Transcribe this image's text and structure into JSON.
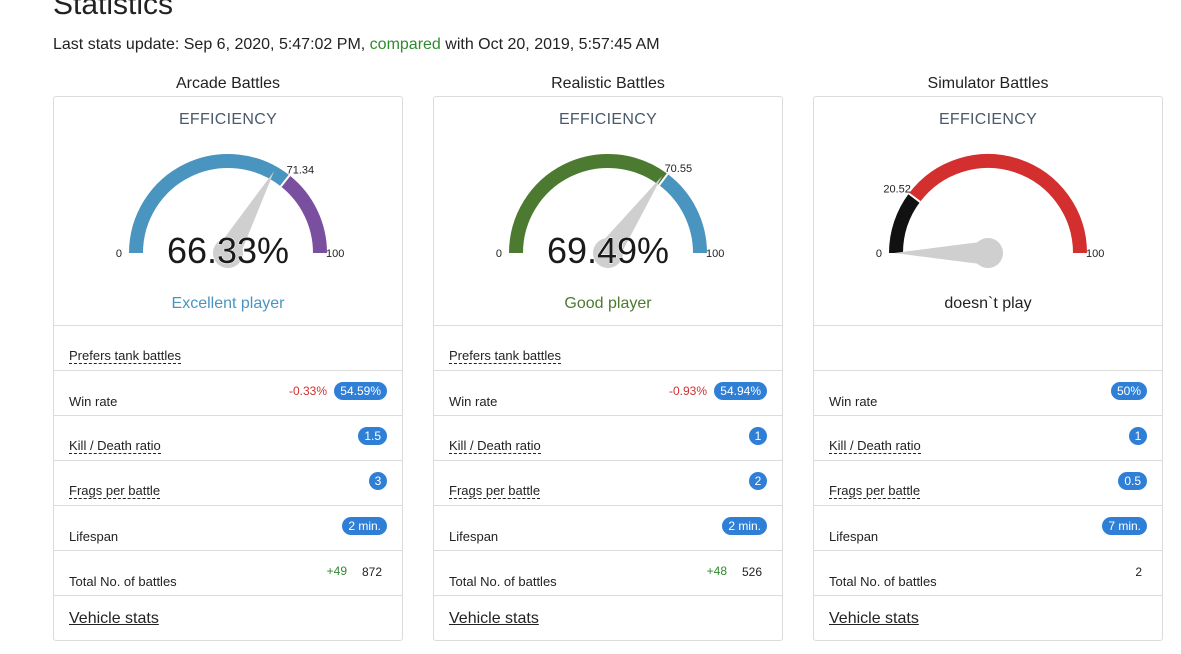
{
  "page": {
    "title": "Statistics",
    "update_prefix": "Last stats update: ",
    "update_date": "Sep 6, 2020, 5:47:02 PM",
    "comma": ",",
    "compared_link": "compared",
    "with_text": " with ",
    "compare_date": "Oct 20, 2019, 5:57:45 AM"
  },
  "columns": [
    {
      "title": "Arcade Battles",
      "efficiency_label": "EFFICIENCY",
      "gauge": {
        "percent_text": "66.33%",
        "value": 66.33,
        "marker_value": 71.34,
        "marker_label": "71.34",
        "min_label": "0",
        "max_label": "100",
        "primary_color": "#4a94c0",
        "secondary_color": "#7b4fa0"
      },
      "status": "Excellent player",
      "status_color": "#4a94c0",
      "prefers": "Prefers tank battles",
      "win_rate": {
        "label": "Win rate",
        "delta": "-0.33%",
        "value": "54.59%"
      },
      "kd": {
        "label": "Kill / Death ratio",
        "value": "1.5"
      },
      "frags": {
        "label": "Frags per battle",
        "value": "3"
      },
      "lifespan": {
        "label": "Lifespan",
        "value": "2 min."
      },
      "total": {
        "label": "Total No. of battles",
        "delta": "+49",
        "value": "872"
      },
      "vehicle_link": "Vehicle stats"
    },
    {
      "title": "Realistic Battles",
      "efficiency_label": "EFFICIENCY",
      "gauge": {
        "percent_text": "69.49%",
        "value": 69.49,
        "marker_value": 70.55,
        "marker_label": "70.55",
        "min_label": "0",
        "max_label": "100",
        "primary_color": "#4b7a30",
        "secondary_color": "#4a94c0"
      },
      "status": "Good player",
      "status_color": "#4b7a30",
      "prefers": "Prefers tank battles",
      "win_rate": {
        "label": "Win rate",
        "delta": "-0.93%",
        "value": "54.94%"
      },
      "kd": {
        "label": "Kill / Death ratio",
        "value": "1"
      },
      "frags": {
        "label": "Frags per battle",
        "value": "2"
      },
      "lifespan": {
        "label": "Lifespan",
        "value": "2 min."
      },
      "total": {
        "label": "Total No. of battles",
        "delta": "+48",
        "value": "526"
      },
      "vehicle_link": "Vehicle stats"
    },
    {
      "title": "Simulator Battles",
      "efficiency_label": "EFFICIENCY",
      "gauge": {
        "percent_text": "",
        "value": 0,
        "marker_value": 20.52,
        "marker_label": "20.52",
        "min_label": "0",
        "max_label": "100",
        "primary_color": "#111111",
        "secondary_color": "#d32f2f"
      },
      "status": "doesn`t play",
      "status_color": "#222222",
      "prefers": "",
      "win_rate": {
        "label": "Win rate",
        "delta": "",
        "value": "50%"
      },
      "kd": {
        "label": "Kill / Death ratio",
        "value": "1"
      },
      "frags": {
        "label": "Frags per battle",
        "value": "0.5"
      },
      "lifespan": {
        "label": "Lifespan",
        "value": "7 min."
      },
      "total": {
        "label": "Total No. of battles",
        "delta": "",
        "value": "2"
      },
      "vehicle_link": "Vehicle stats"
    }
  ]
}
